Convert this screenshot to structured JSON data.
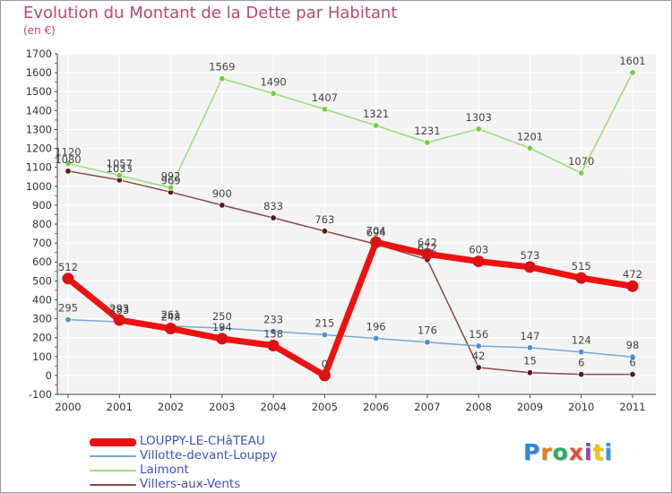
{
  "header": {
    "title": "Evolution du Montant de la Dette par Habitant",
    "unit": "(en €)"
  },
  "logo": {
    "letters": [
      {
        "ch": "P",
        "color": "#2e86de"
      },
      {
        "ch": "r",
        "color": "#e67e22"
      },
      {
        "ch": "o",
        "color": "#27ae60"
      },
      {
        "ch": "x",
        "color": "#e74c3c"
      },
      {
        "ch": "i",
        "color": "#8e44ad"
      },
      {
        "ch": "t",
        "color": "#f1c40f"
      },
      {
        "ch": "i",
        "color": "#3498db"
      }
    ]
  },
  "chart_data": {
    "type": "line",
    "x": [
      2000,
      2001,
      2002,
      2003,
      2004,
      2005,
      2006,
      2007,
      2008,
      2009,
      2010,
      2011
    ],
    "ylim": [
      -100,
      1700
    ],
    "yticks": [
      -100,
      0,
      100,
      200,
      300,
      400,
      500,
      600,
      700,
      800,
      900,
      1000,
      1100,
      1200,
      1300,
      1400,
      1500,
      1600,
      1700
    ],
    "grid": true,
    "legend_position": "bottom-left",
    "series": [
      {
        "name": "LOUPPY-LE-CHâTEAU",
        "color": "#ee1111",
        "marker": "#dd1111",
        "width": 7,
        "values": [
          512,
          293,
          248,
          194,
          158,
          0,
          704,
          642,
          603,
          573,
          515,
          472
        ]
      },
      {
        "name": "Villotte-devant-Louppy",
        "color": "#7aa6d0",
        "marker": "#4a8fd6",
        "width": 1.5,
        "values": [
          295,
          283,
          261,
          250,
          233,
          215,
          196,
          176,
          156,
          147,
          124,
          98
        ]
      },
      {
        "name": "Laimont",
        "color": "#99dd77",
        "marker": "#77cc44",
        "width": 1.5,
        "values": [
          1120,
          1057,
          992,
          1569,
          1490,
          1407,
          1321,
          1231,
          1303,
          1201,
          1070,
          1601
        ]
      },
      {
        "name": "Villers-aux-Vents",
        "color": "#8b4a4a",
        "marker": "#5a1a1a",
        "width": 1.5,
        "values": [
          1080,
          1033,
          969,
          900,
          833,
          763,
          694,
          612,
          42,
          15,
          6,
          6
        ]
      }
    ]
  }
}
